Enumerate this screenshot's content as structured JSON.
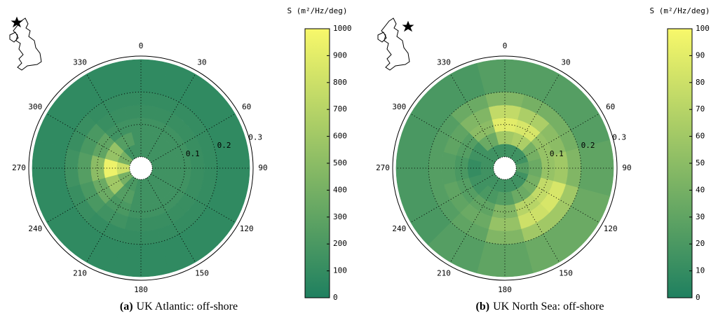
{
  "chart_data": [
    {
      "type": "polar_heatmap",
      "caption_label": "(a)",
      "caption": "UK Atlantic: off-shore",
      "colorbar_label": "S (m²/Hz/deg)",
      "clim": [
        0,
        1000
      ],
      "cticks": [
        0,
        100,
        200,
        300,
        400,
        500,
        600,
        700,
        800,
        900,
        1000
      ],
      "colormap": [
        "#1f8060",
        "#f8f86a"
      ],
      "theta_ticks": [
        0,
        30,
        60,
        90,
        120,
        150,
        180,
        210,
        240,
        270,
        300,
        330
      ],
      "rlim": [
        -0.035,
        0.3
      ],
      "rticks": [
        0.1,
        0.2,
        0.3
      ],
      "theta": [
        0,
        30,
        60,
        90,
        120,
        150,
        180,
        210,
        240,
        270,
        300,
        330
      ],
      "r_edges": [
        0,
        0.04,
        0.08,
        0.12,
        0.16,
        0.2,
        0.3
      ],
      "values": [
        [
          150,
          150,
          150,
          150,
          150,
          150,
          150,
          200,
          400,
          800,
          400,
          150
        ],
        [
          150,
          150,
          150,
          150,
          150,
          150,
          150,
          250,
          600,
          950,
          550,
          250
        ],
        [
          150,
          150,
          150,
          150,
          150,
          150,
          150,
          200,
          350,
          500,
          300,
          150
        ],
        [
          120,
          120,
          120,
          120,
          120,
          120,
          120,
          150,
          200,
          250,
          200,
          120
        ],
        [
          100,
          100,
          100,
          100,
          100,
          100,
          100,
          100,
          120,
          150,
          120,
          100
        ],
        [
          80,
          80,
          80,
          80,
          80,
          80,
          80,
          80,
          80,
          80,
          80,
          80
        ]
      ]
    },
    {
      "type": "polar_heatmap",
      "caption_label": "(b)",
      "caption": "UK North Sea: off-shore",
      "colorbar_label": "S (m²/Hz/deg)",
      "clim": [
        0,
        100
      ],
      "cticks": [
        0,
        10,
        20,
        30,
        40,
        50,
        60,
        70,
        80,
        90,
        100
      ],
      "colormap": [
        "#1f8060",
        "#f8f86a"
      ],
      "theta_ticks": [
        0,
        30,
        60,
        90,
        120,
        150,
        180,
        210,
        240,
        270,
        300,
        330
      ],
      "rlim": [
        -0.035,
        0.3
      ],
      "rticks": [
        0.1,
        0.2,
        0.3
      ],
      "theta": [
        0,
        30,
        60,
        90,
        120,
        150,
        180,
        210,
        240,
        270,
        300,
        330
      ],
      "r_edges": [
        0,
        0.04,
        0.08,
        0.12,
        0.16,
        0.2,
        0.3
      ],
      "values": [
        [
          15,
          15,
          15,
          25,
          15,
          15,
          15,
          15,
          15,
          15,
          15,
          15
        ],
        [
          60,
          65,
          40,
          35,
          40,
          35,
          25,
          20,
          15,
          10,
          15,
          35
        ],
        [
          90,
          85,
          55,
          55,
          75,
          70,
          45,
          30,
          25,
          20,
          25,
          50
        ],
        [
          75,
          65,
          50,
          60,
          85,
          80,
          55,
          35,
          30,
          25,
          30,
          45
        ],
        [
          45,
          40,
          40,
          45,
          60,
          60,
          45,
          30,
          25,
          25,
          25,
          35
        ],
        [
          25,
          25,
          25,
          30,
          35,
          35,
          30,
          25,
          20,
          20,
          20,
          20
        ]
      ]
    }
  ]
}
